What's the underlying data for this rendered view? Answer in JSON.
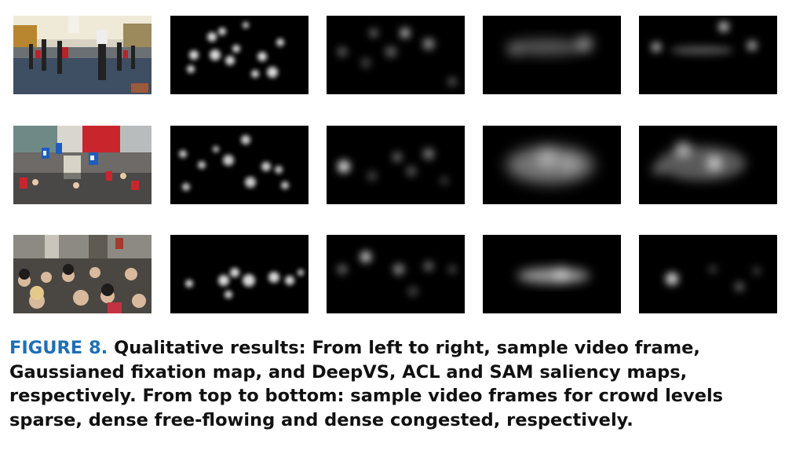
{
  "figure": {
    "label": "FIGURE 8.",
    "caption": "Qualitative results: From left to right, sample video frame, Gaussianed fixation map, and DeepVS, ACL and SAM saliency maps, respectively. From top to bottom: sample video frames for crowd levels sparse, dense free-flowing and dense congested, respectively."
  },
  "rows": [
    {
      "crowd_level": "sparse"
    },
    {
      "crowd_level": "dense free-flowing"
    },
    {
      "crowd_level": "dense congested"
    }
  ],
  "columns": [
    "sample video frame",
    "Gaussianed fixation map",
    "DeepVS",
    "ACL",
    "SAM"
  ]
}
